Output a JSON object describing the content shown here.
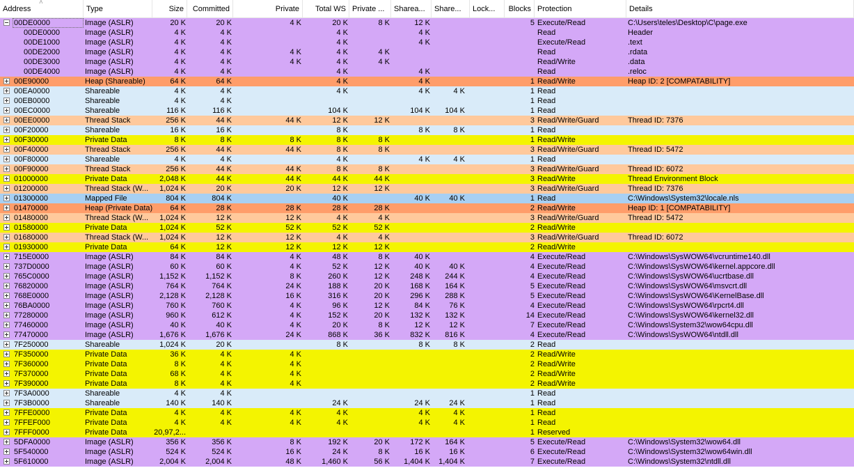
{
  "colors": {
    "image": "#d4a8f7",
    "heap": "#ff9d6a",
    "shareable": "#d9ebf9",
    "thread": "#ffc99c",
    "private": "#f4f400",
    "mapped": "#a8d0f3"
  },
  "columns": [
    {
      "key": "address",
      "label": "Address"
    },
    {
      "key": "type",
      "label": "Type"
    },
    {
      "key": "size",
      "label": "Size"
    },
    {
      "key": "committed",
      "label": "Committed"
    },
    {
      "key": "private",
      "label": "Private"
    },
    {
      "key": "totalws",
      "label": "Total WS"
    },
    {
      "key": "privatews",
      "label": "Private ..."
    },
    {
      "key": "shareable",
      "label": "Sharea..."
    },
    {
      "key": "shared",
      "label": "Share..."
    },
    {
      "key": "locked",
      "label": "Lock..."
    },
    {
      "key": "blocks",
      "label": "Blocks"
    },
    {
      "key": "protection",
      "label": "Protection"
    },
    {
      "key": "details",
      "label": "Details"
    }
  ],
  "rows": [
    {
      "c": "image",
      "t": "minus",
      "sel": true,
      "v": [
        "00DE0000",
        "Image (ASLR)",
        "20 K",
        "20 K",
        "4 K",
        "20 K",
        "8 K",
        "12 K",
        "",
        "",
        "5",
        "Execute/Read",
        "C:\\Users\\teles\\Desktop\\C\\page.exe"
      ]
    },
    {
      "c": "image",
      "t": "child",
      "v": [
        "00DE0000",
        "Image (ASLR)",
        "4 K",
        "4 K",
        "",
        "4 K",
        "",
        "4 K",
        "",
        "",
        "",
        "Read",
        "Header"
      ]
    },
    {
      "c": "image",
      "t": "child",
      "v": [
        "00DE1000",
        "Image (ASLR)",
        "4 K",
        "4 K",
        "",
        "4 K",
        "",
        "4 K",
        "",
        "",
        "",
        "Execute/Read",
        ".text"
      ]
    },
    {
      "c": "image",
      "t": "child",
      "v": [
        "00DE2000",
        "Image (ASLR)",
        "4 K",
        "4 K",
        "4 K",
        "4 K",
        "4 K",
        "",
        "",
        "",
        "",
        "Read",
        ".rdata"
      ]
    },
    {
      "c": "image",
      "t": "child",
      "v": [
        "00DE3000",
        "Image (ASLR)",
        "4 K",
        "4 K",
        "4 K",
        "4 K",
        "4 K",
        "",
        "",
        "",
        "",
        "Read/Write",
        ".data"
      ]
    },
    {
      "c": "image",
      "t": "child",
      "v": [
        "00DE4000",
        "Image (ASLR)",
        "4 K",
        "4 K",
        "",
        "4 K",
        "",
        "4 K",
        "",
        "",
        "",
        "Read",
        ".reloc"
      ]
    },
    {
      "c": "heap",
      "t": "plus",
      "v": [
        "00E90000",
        "Heap (Shareable)",
        "64 K",
        "64 K",
        "",
        "4 K",
        "",
        "4 K",
        "",
        "",
        "1",
        "Read/Write",
        "Heap ID: 2 [COMPATABILITY]"
      ]
    },
    {
      "c": "shareable",
      "t": "plus",
      "v": [
        "00EA0000",
        "Shareable",
        "4 K",
        "4 K",
        "",
        "4 K",
        "",
        "4 K",
        "4 K",
        "",
        "1",
        "Read",
        ""
      ]
    },
    {
      "c": "shareable",
      "t": "plus",
      "v": [
        "00EB0000",
        "Shareable",
        "4 K",
        "4 K",
        "",
        "",
        "",
        "",
        "",
        "",
        "1",
        "Read",
        ""
      ]
    },
    {
      "c": "shareable",
      "t": "plus",
      "v": [
        "00EC0000",
        "Shareable",
        "116 K",
        "116 K",
        "",
        "104 K",
        "",
        "104 K",
        "104 K",
        "",
        "1",
        "Read",
        ""
      ]
    },
    {
      "c": "thread",
      "t": "plus",
      "v": [
        "00EE0000",
        "Thread Stack",
        "256 K",
        "44 K",
        "44 K",
        "12 K",
        "12 K",
        "",
        "",
        "",
        "3",
        "Read/Write/Guard",
        "Thread ID: 7376"
      ]
    },
    {
      "c": "shareable",
      "t": "plus",
      "v": [
        "00F20000",
        "Shareable",
        "16 K",
        "16 K",
        "",
        "8 K",
        "",
        "8 K",
        "8 K",
        "",
        "1",
        "Read",
        ""
      ]
    },
    {
      "c": "private",
      "t": "plus",
      "v": [
        "00F30000",
        "Private Data",
        "8 K",
        "8 K",
        "8 K",
        "8 K",
        "8 K",
        "",
        "",
        "",
        "1",
        "Read/Write",
        ""
      ]
    },
    {
      "c": "thread",
      "t": "plus",
      "v": [
        "00F40000",
        "Thread Stack",
        "256 K",
        "44 K",
        "44 K",
        "8 K",
        "8 K",
        "",
        "",
        "",
        "3",
        "Read/Write/Guard",
        "Thread ID: 5472"
      ]
    },
    {
      "c": "shareable",
      "t": "plus",
      "v": [
        "00F80000",
        "Shareable",
        "4 K",
        "4 K",
        "",
        "4 K",
        "",
        "4 K",
        "4 K",
        "",
        "1",
        "Read",
        ""
      ]
    },
    {
      "c": "thread",
      "t": "plus",
      "v": [
        "00F90000",
        "Thread Stack",
        "256 K",
        "44 K",
        "44 K",
        "8 K",
        "8 K",
        "",
        "",
        "",
        "3",
        "Read/Write/Guard",
        "Thread ID: 6072"
      ]
    },
    {
      "c": "private",
      "t": "plus",
      "v": [
        "01000000",
        "Private Data",
        "2,048 K",
        "44 K",
        "44 K",
        "44 K",
        "44 K",
        "",
        "",
        "",
        "3",
        "Read/Write",
        "Thread Environment Block"
      ]
    },
    {
      "c": "thread",
      "t": "plus",
      "v": [
        "01200000",
        "Thread Stack (W...",
        "1,024 K",
        "20 K",
        "20 K",
        "12 K",
        "12 K",
        "",
        "",
        "",
        "3",
        "Read/Write/Guard",
        "Thread ID: 7376"
      ]
    },
    {
      "c": "mapped",
      "t": "plus",
      "v": [
        "01300000",
        "Mapped File",
        "804 K",
        "804 K",
        "",
        "40 K",
        "",
        "40 K",
        "40 K",
        "",
        "1",
        "Read",
        "C:\\Windows\\System32\\locale.nls"
      ]
    },
    {
      "c": "heap",
      "t": "plus",
      "v": [
        "01470000",
        "Heap (Private Data)",
        "64 K",
        "28 K",
        "28 K",
        "28 K",
        "28 K",
        "",
        "",
        "",
        "2",
        "Read/Write",
        "Heap ID: 1 [COMPATABILITY]"
      ]
    },
    {
      "c": "thread",
      "t": "plus",
      "v": [
        "01480000",
        "Thread Stack (W...",
        "1,024 K",
        "12 K",
        "12 K",
        "4 K",
        "4 K",
        "",
        "",
        "",
        "3",
        "Read/Write/Guard",
        "Thread ID: 5472"
      ]
    },
    {
      "c": "private",
      "t": "plus",
      "v": [
        "01580000",
        "Private Data",
        "1,024 K",
        "52 K",
        "52 K",
        "52 K",
        "52 K",
        "",
        "",
        "",
        "2",
        "Read/Write",
        ""
      ]
    },
    {
      "c": "thread",
      "t": "plus",
      "v": [
        "01680000",
        "Thread Stack (W...",
        "1,024 K",
        "12 K",
        "12 K",
        "4 K",
        "4 K",
        "",
        "",
        "",
        "3",
        "Read/Write/Guard",
        "Thread ID: 6072"
      ]
    },
    {
      "c": "private",
      "t": "plus",
      "v": [
        "01930000",
        "Private Data",
        "64 K",
        "12 K",
        "12 K",
        "12 K",
        "12 K",
        "",
        "",
        "",
        "2",
        "Read/Write",
        ""
      ]
    },
    {
      "c": "image",
      "t": "plus",
      "v": [
        "715E0000",
        "Image (ASLR)",
        "84 K",
        "84 K",
        "4 K",
        "48 K",
        "8 K",
        "40 K",
        "",
        "",
        "4",
        "Execute/Read",
        "C:\\Windows\\SysWOW64\\vcruntime140.dll"
      ]
    },
    {
      "c": "image",
      "t": "plus",
      "v": [
        "737D0000",
        "Image (ASLR)",
        "60 K",
        "60 K",
        "4 K",
        "52 K",
        "12 K",
        "40 K",
        "40 K",
        "",
        "4",
        "Execute/Read",
        "C:\\Windows\\SysWOW64\\kernel.appcore.dll"
      ]
    },
    {
      "c": "image",
      "t": "plus",
      "v": [
        "765C0000",
        "Image (ASLR)",
        "1,152 K",
        "1,152 K",
        "8 K",
        "260 K",
        "12 K",
        "248 K",
        "244 K",
        "",
        "4",
        "Execute/Read",
        "C:\\Windows\\SysWOW64\\ucrtbase.dll"
      ]
    },
    {
      "c": "image",
      "t": "plus",
      "v": [
        "76820000",
        "Image (ASLR)",
        "764 K",
        "764 K",
        "24 K",
        "188 K",
        "20 K",
        "168 K",
        "164 K",
        "",
        "5",
        "Execute/Read",
        "C:\\Windows\\SysWOW64\\msvcrt.dll"
      ]
    },
    {
      "c": "image",
      "t": "plus",
      "v": [
        "768E0000",
        "Image (ASLR)",
        "2,128 K",
        "2,128 K",
        "16 K",
        "316 K",
        "20 K",
        "296 K",
        "288 K",
        "",
        "5",
        "Execute/Read",
        "C:\\Windows\\SysWOW64\\KernelBase.dll"
      ]
    },
    {
      "c": "image",
      "t": "plus",
      "v": [
        "76BA0000",
        "Image (ASLR)",
        "760 K",
        "760 K",
        "4 K",
        "96 K",
        "12 K",
        "84 K",
        "76 K",
        "",
        "4",
        "Execute/Read",
        "C:\\Windows\\SysWOW64\\rpcrt4.dll"
      ]
    },
    {
      "c": "image",
      "t": "plus",
      "v": [
        "77280000",
        "Image (ASLR)",
        "960 K",
        "612 K",
        "4 K",
        "152 K",
        "20 K",
        "132 K",
        "132 K",
        "",
        "14",
        "Execute/Read",
        "C:\\Windows\\SysWOW64\\kernel32.dll"
      ]
    },
    {
      "c": "image",
      "t": "plus",
      "v": [
        "77460000",
        "Image (ASLR)",
        "40 K",
        "40 K",
        "4 K",
        "20 K",
        "8 K",
        "12 K",
        "12 K",
        "",
        "7",
        "Execute/Read",
        "C:\\Windows\\System32\\wow64cpu.dll"
      ]
    },
    {
      "c": "image",
      "t": "plus",
      "v": [
        "77470000",
        "Image (ASLR)",
        "1,676 K",
        "1,676 K",
        "24 K",
        "868 K",
        "36 K",
        "832 K",
        "816 K",
        "",
        "4",
        "Execute/Read",
        "C:\\Windows\\SysWOW64\\ntdll.dll"
      ]
    },
    {
      "c": "shareable",
      "t": "plus",
      "v": [
        "7F250000",
        "Shareable",
        "1,024 K",
        "20 K",
        "",
        "8 K",
        "",
        "8 K",
        "8 K",
        "",
        "2",
        "Read",
        ""
      ]
    },
    {
      "c": "private",
      "t": "plus",
      "v": [
        "7F350000",
        "Private Data",
        "36 K",
        "4 K",
        "4 K",
        "",
        "",
        "",
        "",
        "",
        "2",
        "Read/Write",
        ""
      ]
    },
    {
      "c": "private",
      "t": "plus",
      "v": [
        "7F360000",
        "Private Data",
        "8 K",
        "4 K",
        "4 K",
        "",
        "",
        "",
        "",
        "",
        "2",
        "Read/Write",
        ""
      ]
    },
    {
      "c": "private",
      "t": "plus",
      "v": [
        "7F370000",
        "Private Data",
        "68 K",
        "4 K",
        "4 K",
        "",
        "",
        "",
        "",
        "",
        "2",
        "Read/Write",
        ""
      ]
    },
    {
      "c": "private",
      "t": "plus",
      "v": [
        "7F390000",
        "Private Data",
        "8 K",
        "4 K",
        "4 K",
        "",
        "",
        "",
        "",
        "",
        "2",
        "Read/Write",
        ""
      ]
    },
    {
      "c": "shareable",
      "t": "plus",
      "v": [
        "7F3A0000",
        "Shareable",
        "4 K",
        "4 K",
        "",
        "",
        "",
        "",
        "",
        "",
        "1",
        "Read",
        ""
      ]
    },
    {
      "c": "shareable",
      "t": "plus",
      "v": [
        "7F3B0000",
        "Shareable",
        "140 K",
        "140 K",
        "",
        "24 K",
        "",
        "24 K",
        "24 K",
        "",
        "1",
        "Read",
        ""
      ]
    },
    {
      "c": "private",
      "t": "plus",
      "v": [
        "7FFE0000",
        "Private Data",
        "4 K",
        "4 K",
        "4 K",
        "4 K",
        "",
        "4 K",
        "4 K",
        "",
        "1",
        "Read",
        ""
      ]
    },
    {
      "c": "private",
      "t": "plus",
      "v": [
        "7FFEF000",
        "Private Data",
        "4 K",
        "4 K",
        "4 K",
        "4 K",
        "",
        "4 K",
        "4 K",
        "",
        "1",
        "Read",
        ""
      ]
    },
    {
      "c": "private",
      "t": "plus",
      "v": [
        "7FFF0000",
        "Private Data",
        "20,97,2...",
        "",
        "",
        "",
        "",
        "",
        "",
        "",
        "1",
        "Reserved",
        ""
      ]
    },
    {
      "c": "image",
      "t": "plus",
      "v": [
        "5DFA0000",
        "Image (ASLR)",
        "356 K",
        "356 K",
        "8 K",
        "192 K",
        "20 K",
        "172 K",
        "164 K",
        "",
        "5",
        "Execute/Read",
        "C:\\Windows\\System32\\wow64.dll"
      ]
    },
    {
      "c": "image",
      "t": "plus",
      "v": [
        "5F540000",
        "Image (ASLR)",
        "524 K",
        "524 K",
        "16 K",
        "24 K",
        "8 K",
        "16 K",
        "16 K",
        "",
        "6",
        "Execute/Read",
        "C:\\Windows\\System32\\wow64win.dll"
      ]
    },
    {
      "c": "image",
      "t": "plus",
      "v": [
        "5F610000",
        "Image (ASLR)",
        "2,004 K",
        "2,004 K",
        "48 K",
        "1,460 K",
        "56 K",
        "1,404 K",
        "1,404 K",
        "",
        "7",
        "Execute/Read",
        "C:\\Windows\\System32\\ntdll.dll"
      ]
    }
  ]
}
